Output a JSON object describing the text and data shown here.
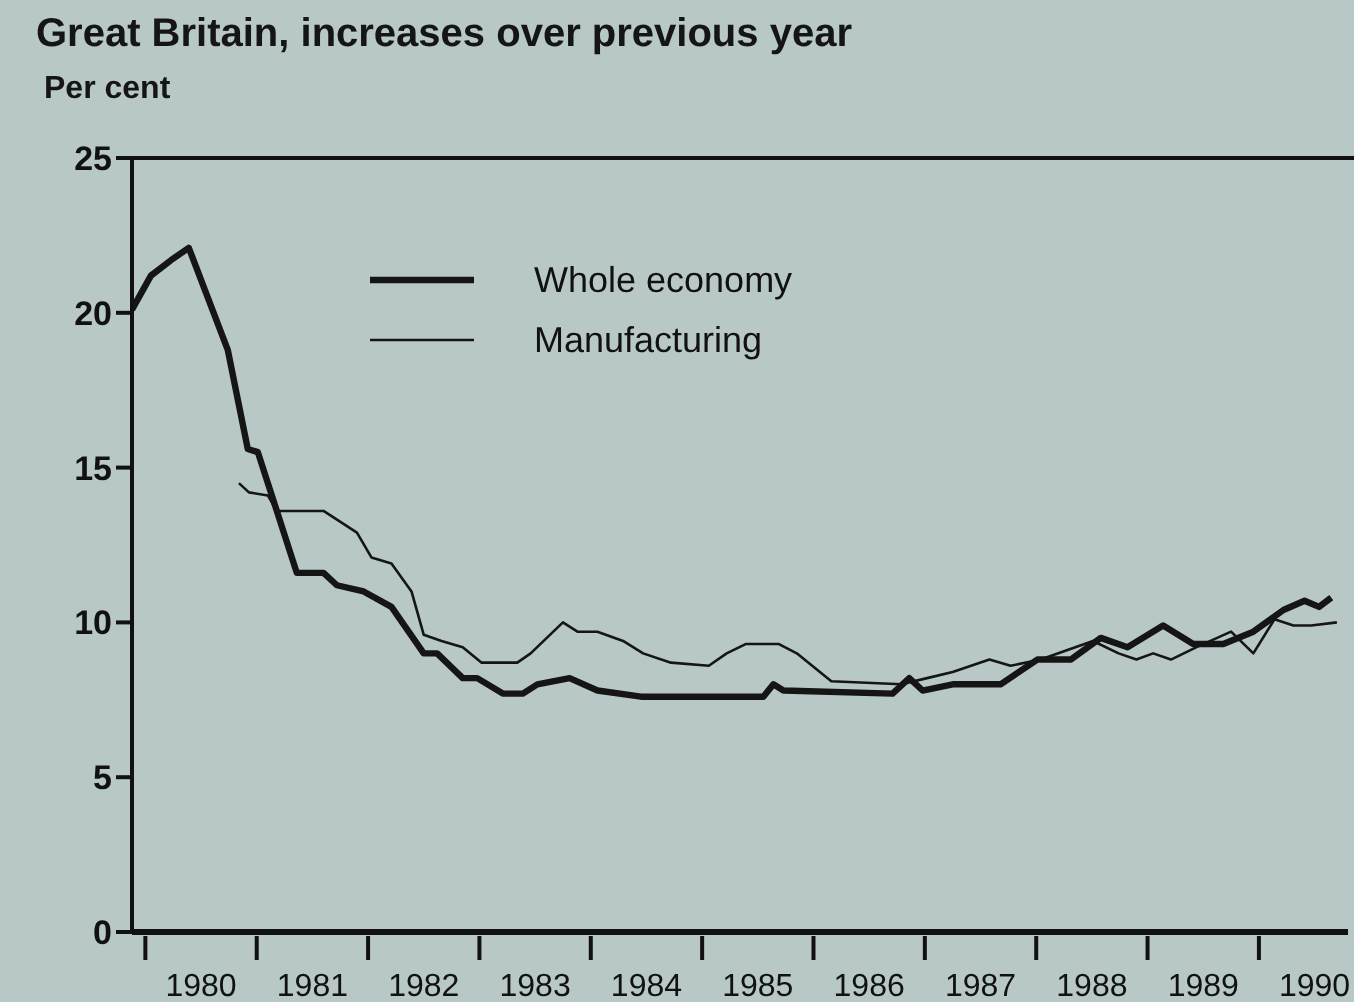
{
  "chart_data": {
    "type": "line",
    "title": "Great Britain, increases over previous year",
    "ylabel": "Per cent",
    "xlim": [
      1979.88,
      1990.8
    ],
    "ylim": [
      0,
      25
    ],
    "yticks": [
      0,
      5,
      10,
      15,
      20,
      25
    ],
    "xticks": [
      {
        "value": 1980,
        "label": null
      },
      {
        "value": 1980.5,
        "label": "1980"
      },
      {
        "value": 1981,
        "label": null
      },
      {
        "value": 1981.5,
        "label": "1981"
      },
      {
        "value": 1982,
        "label": null
      },
      {
        "value": 1982.5,
        "label": "1982"
      },
      {
        "value": 1983,
        "label": null
      },
      {
        "value": 1983.5,
        "label": "1983"
      },
      {
        "value": 1984,
        "label": null
      },
      {
        "value": 1984.5,
        "label": "1984"
      },
      {
        "value": 1985,
        "label": null
      },
      {
        "value": 1985.5,
        "label": "1985"
      },
      {
        "value": 1986,
        "label": null
      },
      {
        "value": 1986.5,
        "label": "1986"
      },
      {
        "value": 1987,
        "label": null
      },
      {
        "value": 1987.5,
        "label": "1987"
      },
      {
        "value": 1988,
        "label": null
      },
      {
        "value": 1988.5,
        "label": "1988"
      },
      {
        "value": 1989,
        "label": null
      },
      {
        "value": 1989.5,
        "label": "1989"
      },
      {
        "value": 1990,
        "label": null
      },
      {
        "value": 1990.5,
        "label": "1990"
      }
    ],
    "legend": "top",
    "marker": "none",
    "line_style": "solid",
    "series": [
      {
        "name": "Whole economy",
        "color": "#151515",
        "x": [
          1979.88,
          1980.05,
          1980.23,
          1980.39,
          1980.74,
          1980.92,
          1981.01,
          1981.36,
          1981.6,
          1981.72,
          1981.96,
          1982.21,
          1982.5,
          1982.62,
          1982.85,
          1982.98,
          1983.21,
          1983.39,
          1983.52,
          1983.81,
          1984.06,
          1984.45,
          1985.55,
          1985.64,
          1985.73,
          1986.71,
          1986.86,
          1986.98,
          1987.25,
          1987.68,
          1988.01,
          1988.31,
          1988.58,
          1988.82,
          1989.14,
          1989.41,
          1989.68,
          1989.95,
          1990.22,
          1990.41,
          1990.54,
          1990.65
        ],
        "values": [
          20.1,
          21.2,
          21.7,
          22.1,
          18.8,
          15.6,
          15.5,
          11.6,
          11.6,
          11.2,
          11.0,
          10.5,
          9.0,
          9.0,
          8.2,
          8.2,
          7.7,
          7.7,
          8.0,
          8.2,
          7.8,
          7.6,
          7.6,
          8.0,
          7.8,
          7.7,
          8.2,
          7.8,
          8.0,
          8.0,
          8.8,
          8.8,
          9.5,
          9.2,
          9.9,
          9.3,
          9.3,
          9.7,
          10.4,
          10.7,
          10.5,
          10.8
        ]
      },
      {
        "name": "Manufacturing",
        "color": "#151515",
        "x": [
          1980.84,
          1980.93,
          1981.1,
          1981.18,
          1981.6,
          1981.9,
          1982.03,
          1982.21,
          1982.39,
          1982.5,
          1982.66,
          1982.85,
          1983.02,
          1983.34,
          1983.46,
          1983.75,
          1983.88,
          1984.06,
          1984.29,
          1984.47,
          1984.72,
          1985.06,
          1985.22,
          1985.39,
          1985.69,
          1985.85,
          1986.16,
          1986.79,
          1987.02,
          1987.25,
          1987.58,
          1987.77,
          1988.04,
          1988.51,
          1988.74,
          1988.9,
          1989.05,
          1989.21,
          1989.44,
          1989.75,
          1989.95,
          1990.14,
          1990.31,
          1990.47,
          1990.7
        ],
        "values": [
          14.5,
          14.2,
          14.1,
          13.6,
          13.6,
          12.9,
          12.1,
          11.9,
          11.0,
          9.6,
          9.4,
          9.2,
          8.7,
          8.7,
          9.0,
          10.0,
          9.7,
          9.7,
          9.4,
          9.0,
          8.7,
          8.6,
          9.0,
          9.3,
          9.3,
          9.0,
          8.1,
          8.0,
          8.2,
          8.4,
          8.8,
          8.6,
          8.8,
          9.4,
          9.0,
          8.8,
          9.0,
          8.8,
          9.2,
          9.7,
          9.0,
          10.1,
          9.9,
          9.9,
          10.0
        ]
      }
    ]
  }
}
